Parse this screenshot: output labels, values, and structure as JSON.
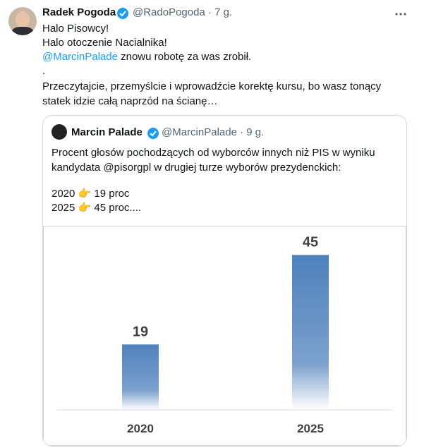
{
  "tweet": {
    "name": "Radek Pogoda",
    "handle": "@RadoPogoda",
    "time": "7 g.",
    "lines": [
      "Halo Pisowcy!",
      "Halo otoczenie Nacialnika!"
    ],
    "mention": "@MarcinPalade",
    "mention_rest": " znowu robotę za was zrobił.",
    "dot": ".",
    "last": "Przeczytajcie, przemyślcie i wprowadźcie korektę kursu, bo wasz tonący statek idzie całą naprzód na ścianę…"
  },
  "quote": {
    "name": "Marcin Palade",
    "handle": "@MarcinPalade",
    "time": "9 g.",
    "text": "Procent głosów pochodzących od wyborców innych niż PIS w wyniku kandydata @pisorgpl w drugiej turze wyborów prezydenckich:",
    "line1": "2020 👉 19 proc",
    "line2": "2025 👉 45 proc...."
  },
  "chart_data": {
    "type": "bar",
    "categories": [
      "2020",
      "2025"
    ],
    "values": [
      19,
      45
    ],
    "color": "#4f81bd"
  }
}
